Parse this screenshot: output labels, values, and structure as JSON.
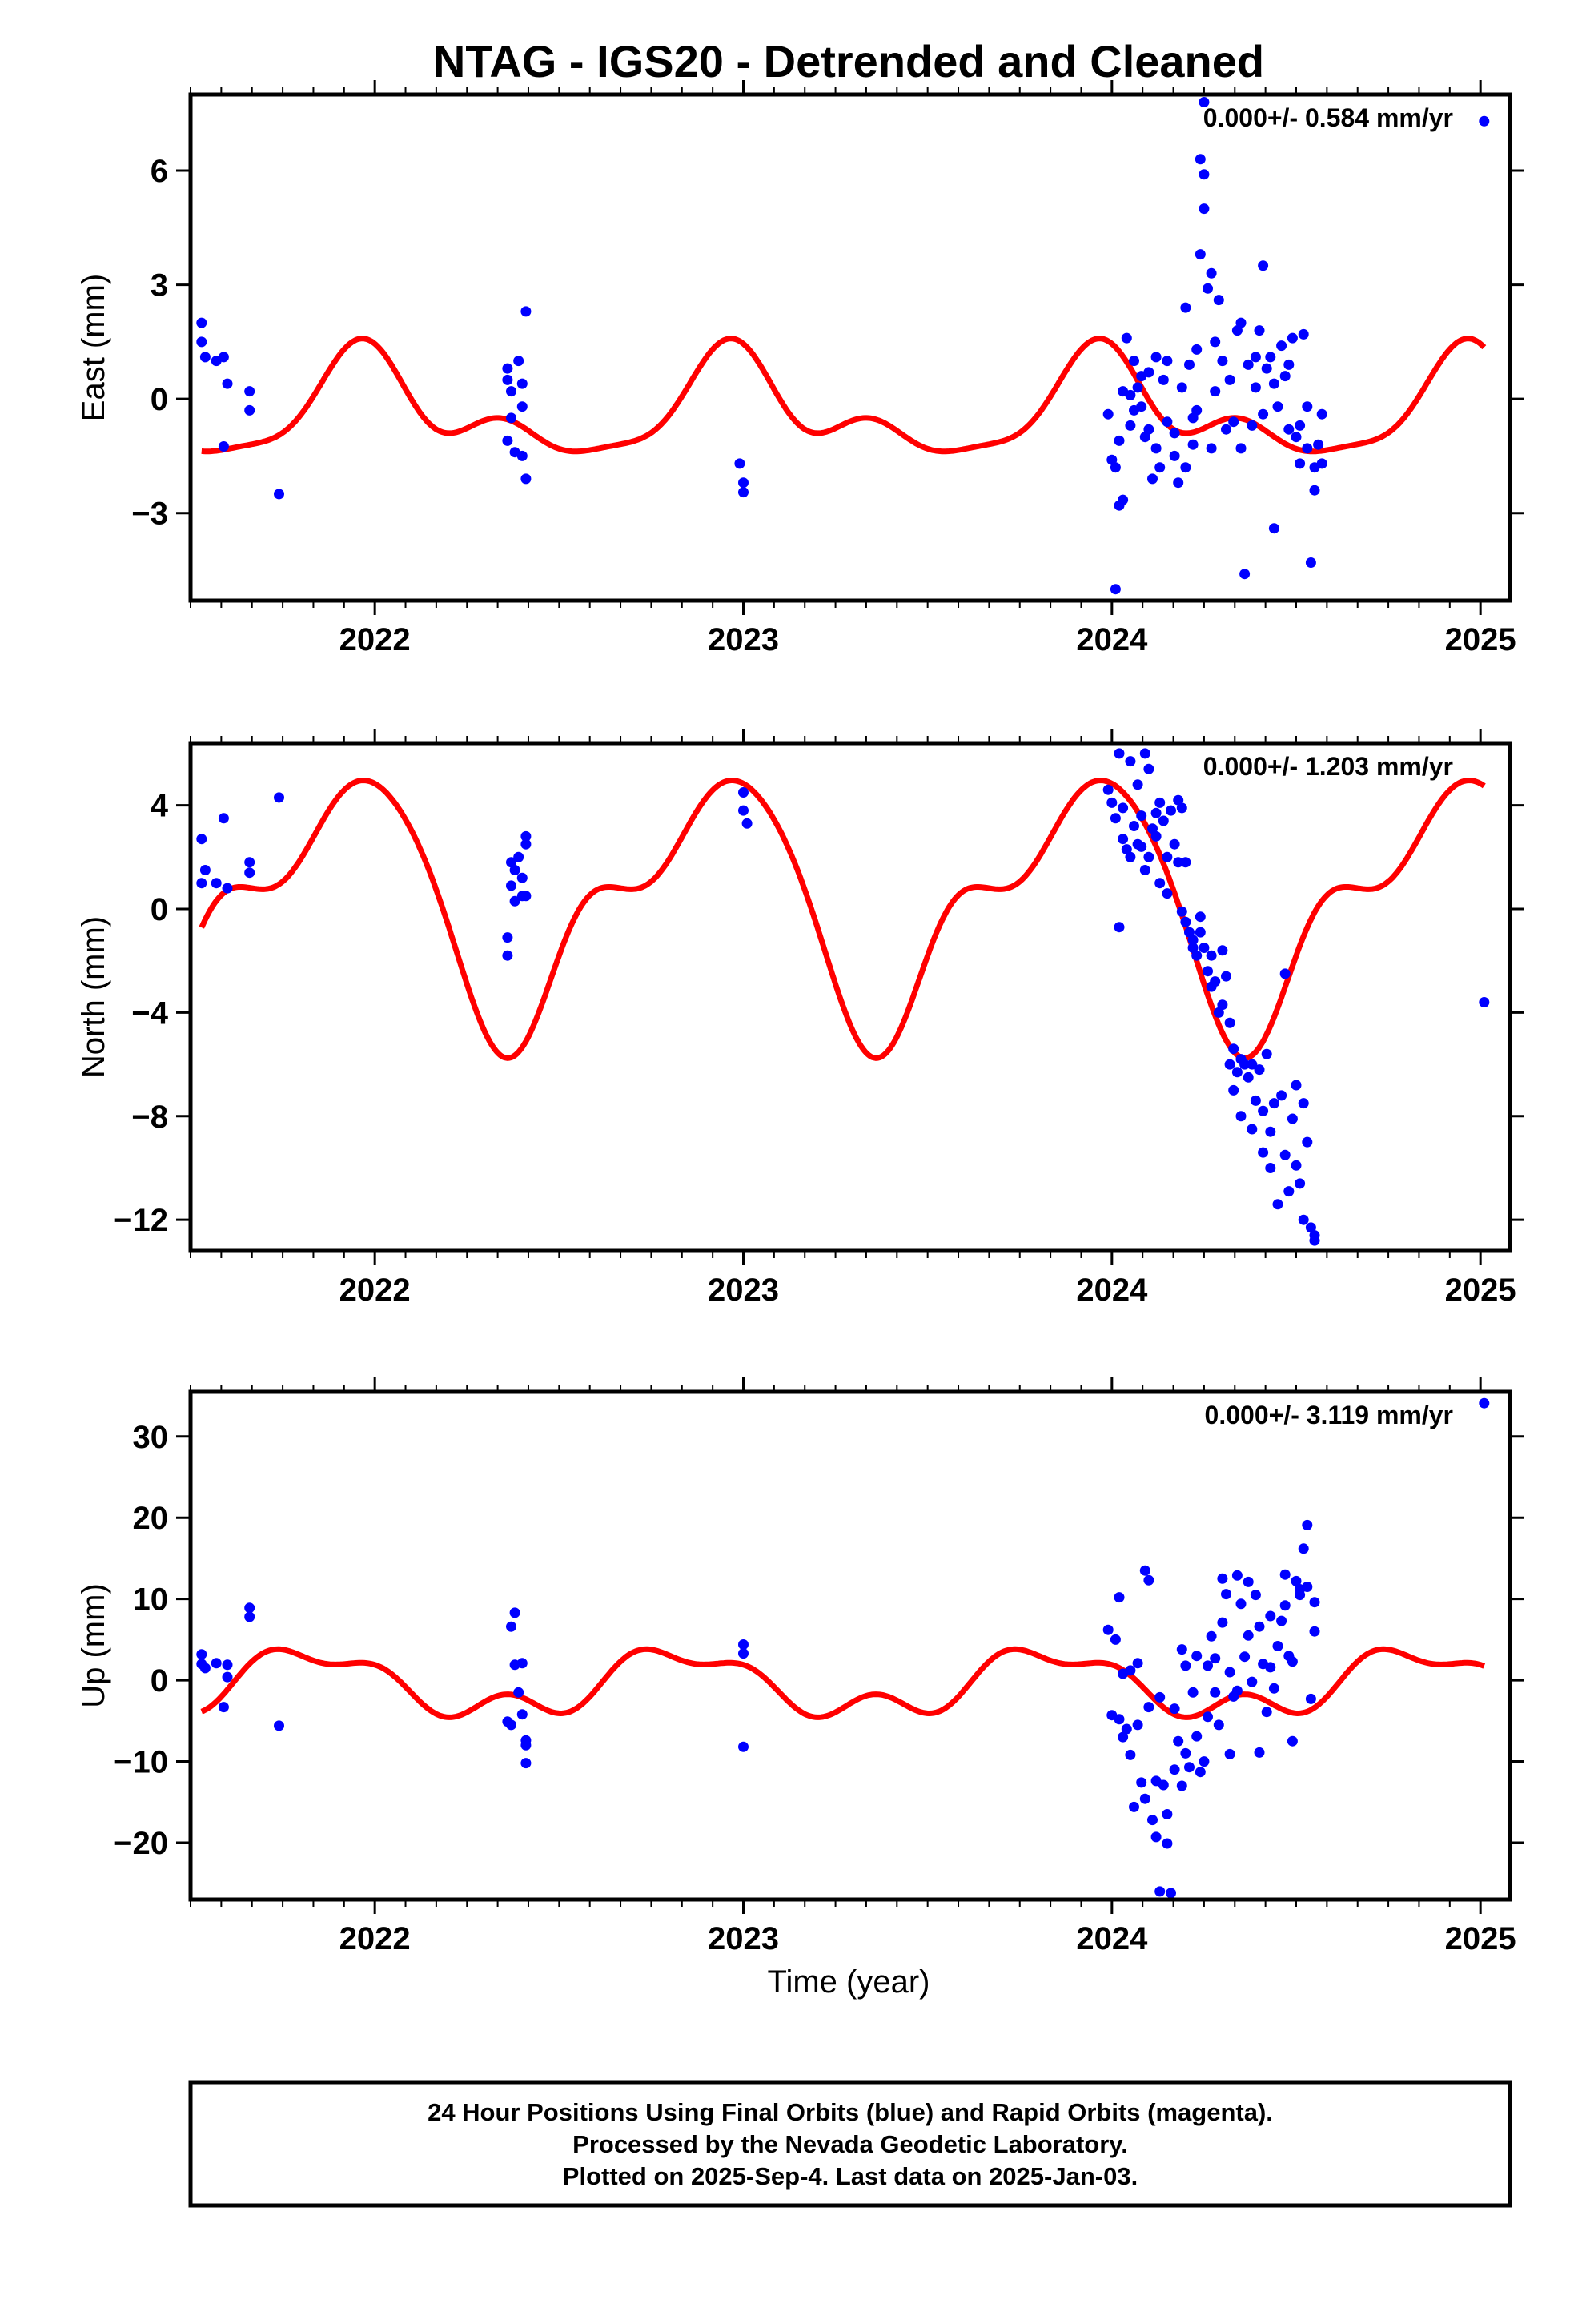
{
  "title": "NTAG - IGS20 - Detrended and Cleaned",
  "xlabel": "Time (year)",
  "footer": {
    "line1": "24 Hour Positions Using Final Orbits (blue) and Rapid Orbits (magenta).",
    "line2": "Processed by the Nevada Geodetic Laboratory.",
    "line3": "Plotted on 2025-Sep-4. Last data on 2025-Jan-03."
  },
  "colors": {
    "points": "#0000ff",
    "model": "#ff0000",
    "frame": "#000000"
  },
  "chart_data": [
    {
      "type": "scatter",
      "ylabel": "East (mm)",
      "rate_text": "0.000+/- 0.584 mm/yr",
      "xlim": [
        2021.5,
        2025.08
      ],
      "ylim": [
        -5.3,
        8.0
      ],
      "xticks": [
        2022,
        2023,
        2024,
        2025
      ],
      "yticks": [
        -3,
        0,
        3,
        6
      ],
      "ytick_labels": [
        "−3",
        "0",
        "3",
        "6"
      ],
      "points": [
        [
          2021.53,
          2.0
        ],
        [
          2021.53,
          1.5
        ],
        [
          2021.54,
          1.1
        ],
        [
          2021.57,
          1.0
        ],
        [
          2021.59,
          1.1
        ],
        [
          2021.59,
          -1.25
        ],
        [
          2021.6,
          0.4
        ],
        [
          2021.66,
          0.2
        ],
        [
          2021.66,
          -0.3
        ],
        [
          2021.74,
          -2.5
        ],
        [
          2022.36,
          0.8
        ],
        [
          2022.36,
          0.5
        ],
        [
          2022.36,
          -1.1
        ],
        [
          2022.37,
          0.2
        ],
        [
          2022.37,
          -0.5
        ],
        [
          2022.38,
          -1.4
        ],
        [
          2022.39,
          1.0
        ],
        [
          2022.4,
          0.4
        ],
        [
          2022.4,
          -0.2
        ],
        [
          2022.4,
          -1.5
        ],
        [
          2022.41,
          2.3
        ],
        [
          2022.41,
          -2.1
        ],
        [
          2022.99,
          -1.7
        ],
        [
          2023.0,
          -2.2
        ],
        [
          2023.0,
          -2.45
        ],
        [
          2023.99,
          -0.4
        ],
        [
          2024.0,
          -1.6
        ],
        [
          2024.01,
          -1.8
        ],
        [
          2024.01,
          -5.0
        ],
        [
          2024.02,
          -1.1
        ],
        [
          2024.02,
          -2.8
        ],
        [
          2024.03,
          -2.65
        ],
        [
          2024.03,
          0.2
        ],
        [
          2024.04,
          1.6
        ],
        [
          2024.05,
          -0.7
        ],
        [
          2024.05,
          0.1
        ],
        [
          2024.06,
          1.0
        ],
        [
          2024.06,
          -0.3
        ],
        [
          2024.07,
          0.3
        ],
        [
          2024.08,
          0.6
        ],
        [
          2024.08,
          -0.2
        ],
        [
          2024.09,
          -1.0
        ],
        [
          2024.1,
          0.7
        ],
        [
          2024.1,
          -0.8
        ],
        [
          2024.11,
          -2.1
        ],
        [
          2024.12,
          1.1
        ],
        [
          2024.12,
          -1.3
        ],
        [
          2024.13,
          -1.8
        ],
        [
          2024.14,
          0.5
        ],
        [
          2024.15,
          -0.6
        ],
        [
          2024.15,
          1.0
        ],
        [
          2024.17,
          -1.5
        ],
        [
          2024.17,
          -0.9
        ],
        [
          2024.18,
          -2.2
        ],
        [
          2024.19,
          0.3
        ],
        [
          2024.2,
          -1.8
        ],
        [
          2024.2,
          2.4
        ],
        [
          2024.21,
          0.9
        ],
        [
          2024.22,
          -1.2
        ],
        [
          2024.22,
          -0.5
        ],
        [
          2024.23,
          1.3
        ],
        [
          2024.23,
          -0.3
        ],
        [
          2024.24,
          3.8
        ],
        [
          2024.24,
          6.3
        ],
        [
          2024.25,
          5.9
        ],
        [
          2024.25,
          7.8
        ],
        [
          2024.25,
          5.0
        ],
        [
          2024.26,
          2.9
        ],
        [
          2024.27,
          3.3
        ],
        [
          2024.27,
          -1.3
        ],
        [
          2024.28,
          1.5
        ],
        [
          2024.28,
          0.2
        ],
        [
          2024.29,
          2.6
        ],
        [
          2024.3,
          1.0
        ],
        [
          2024.31,
          -0.8
        ],
        [
          2024.32,
          0.5
        ],
        [
          2024.33,
          -0.6
        ],
        [
          2024.34,
          1.8
        ],
        [
          2024.35,
          2.0
        ],
        [
          2024.35,
          -1.3
        ],
        [
          2024.36,
          -4.6
        ],
        [
          2024.37,
          0.9
        ],
        [
          2024.38,
          -0.7
        ],
        [
          2024.39,
          1.1
        ],
        [
          2024.39,
          0.3
        ],
        [
          2024.4,
          1.8
        ],
        [
          2024.41,
          -0.4
        ],
        [
          2024.41,
          3.5
        ],
        [
          2024.42,
          0.8
        ],
        [
          2024.43,
          1.1
        ],
        [
          2024.44,
          0.4
        ],
        [
          2024.44,
          -3.4
        ],
        [
          2024.45,
          -0.2
        ],
        [
          2024.46,
          1.4
        ],
        [
          2024.47,
          0.6
        ],
        [
          2024.48,
          -0.8
        ],
        [
          2024.48,
          0.9
        ],
        [
          2024.49,
          1.6
        ],
        [
          2024.5,
          -1.0
        ],
        [
          2024.51,
          -1.7
        ],
        [
          2024.51,
          -0.7
        ],
        [
          2024.52,
          1.7
        ],
        [
          2024.53,
          -1.3
        ],
        [
          2024.53,
          -0.2
        ],
        [
          2024.54,
          -4.3
        ],
        [
          2024.55,
          -2.4
        ],
        [
          2024.55,
          -1.8
        ],
        [
          2024.56,
          -1.2
        ],
        [
          2024.57,
          -0.4
        ],
        [
          2024.57,
          -1.7
        ],
        [
          2025.01,
          7.3
        ]
      ]
    },
    {
      "type": "scatter",
      "ylabel": "North (mm)",
      "rate_text": "0.000+/- 1.203 mm/yr",
      "xlim": [
        2021.5,
        2025.08
      ],
      "ylim": [
        -13.2,
        6.4
      ],
      "xticks": [
        2022,
        2023,
        2024,
        2025
      ],
      "yticks": [
        -12,
        -8,
        -4,
        0,
        4
      ],
      "ytick_labels": [
        "−12",
        "−8",
        "−4",
        "0",
        "4"
      ],
      "points": [
        [
          2021.53,
          2.7
        ],
        [
          2021.53,
          1.0
        ],
        [
          2021.54,
          1.5
        ],
        [
          2021.57,
          1.0
        ],
        [
          2021.59,
          3.5
        ],
        [
          2021.6,
          0.8
        ],
        [
          2021.66,
          1.8
        ],
        [
          2021.66,
          1.4
        ],
        [
          2021.74,
          4.3
        ],
        [
          2022.36,
          -1.1
        ],
        [
          2022.36,
          -1.8
        ],
        [
          2022.37,
          1.8
        ],
        [
          2022.37,
          0.9
        ],
        [
          2022.38,
          0.3
        ],
        [
          2022.38,
          1.5
        ],
        [
          2022.39,
          2.0
        ],
        [
          2022.4,
          0.5
        ],
        [
          2022.4,
          1.2
        ],
        [
          2022.41,
          2.8
        ],
        [
          2022.41,
          0.5
        ],
        [
          2022.41,
          2.5
        ],
        [
          2023.0,
          4.5
        ],
        [
          2023.0,
          3.8
        ],
        [
          2023.01,
          3.3
        ],
        [
          2023.99,
          4.6
        ],
        [
          2024.0,
          4.1
        ],
        [
          2024.01,
          3.5
        ],
        [
          2024.02,
          6.0
        ],
        [
          2024.02,
          -0.7
        ],
        [
          2024.03,
          3.9
        ],
        [
          2024.03,
          2.7
        ],
        [
          2024.04,
          2.3
        ],
        [
          2024.05,
          2.0
        ],
        [
          2024.05,
          5.7
        ],
        [
          2024.06,
          3.2
        ],
        [
          2024.07,
          2.5
        ],
        [
          2024.07,
          4.8
        ],
        [
          2024.08,
          2.4
        ],
        [
          2024.08,
          3.6
        ],
        [
          2024.09,
          1.5
        ],
        [
          2024.09,
          6.0
        ],
        [
          2024.1,
          2.0
        ],
        [
          2024.1,
          5.4
        ],
        [
          2024.11,
          3.1
        ],
        [
          2024.12,
          2.8
        ],
        [
          2024.12,
          3.7
        ],
        [
          2024.13,
          1.0
        ],
        [
          2024.13,
          4.1
        ],
        [
          2024.14,
          3.4
        ],
        [
          2024.15,
          2.0
        ],
        [
          2024.15,
          0.6
        ],
        [
          2024.16,
          3.8
        ],
        [
          2024.17,
          2.5
        ],
        [
          2024.18,
          1.8
        ],
        [
          2024.18,
          4.2
        ],
        [
          2024.19,
          -0.1
        ],
        [
          2024.19,
          3.9
        ],
        [
          2024.2,
          -0.5
        ],
        [
          2024.2,
          1.8
        ],
        [
          2024.21,
          -0.9
        ],
        [
          2024.22,
          -1.5
        ],
        [
          2024.22,
          -1.2
        ],
        [
          2024.23,
          -1.8
        ],
        [
          2024.24,
          -0.3
        ],
        [
          2024.24,
          -0.9
        ],
        [
          2024.25,
          -1.5
        ],
        [
          2024.26,
          -2.4
        ],
        [
          2024.27,
          -3.0
        ],
        [
          2024.27,
          -1.8
        ],
        [
          2024.28,
          -2.8
        ],
        [
          2024.29,
          -4.0
        ],
        [
          2024.3,
          -1.6
        ],
        [
          2024.3,
          -3.7
        ],
        [
          2024.31,
          -2.6
        ],
        [
          2024.32,
          -4.4
        ],
        [
          2024.32,
          -6.0
        ],
        [
          2024.33,
          -5.4
        ],
        [
          2024.33,
          -7.0
        ],
        [
          2024.34,
          -6.3
        ],
        [
          2024.35,
          -5.8
        ],
        [
          2024.35,
          -8.0
        ],
        [
          2024.36,
          -6.0
        ],
        [
          2024.37,
          -6.5
        ],
        [
          2024.38,
          -8.5
        ],
        [
          2024.38,
          -6.0
        ],
        [
          2024.39,
          -7.4
        ],
        [
          2024.4,
          -6.2
        ],
        [
          2024.41,
          -7.8
        ],
        [
          2024.41,
          -9.4
        ],
        [
          2024.42,
          -5.6
        ],
        [
          2024.43,
          -8.6
        ],
        [
          2024.43,
          -10.0
        ],
        [
          2024.44,
          -7.5
        ],
        [
          2024.45,
          -11.4
        ],
        [
          2024.46,
          -7.2
        ],
        [
          2024.47,
          -9.5
        ],
        [
          2024.47,
          -2.5
        ],
        [
          2024.48,
          -10.9
        ],
        [
          2024.49,
          -8.1
        ],
        [
          2024.5,
          -9.9
        ],
        [
          2024.5,
          -6.8
        ],
        [
          2024.51,
          -10.6
        ],
        [
          2024.52,
          -12.0
        ],
        [
          2024.52,
          -7.5
        ],
        [
          2024.53,
          -9.0
        ],
        [
          2024.54,
          -12.3
        ],
        [
          2024.55,
          -12.8
        ],
        [
          2024.55,
          -12.6
        ],
        [
          2025.01,
          -3.6
        ]
      ]
    },
    {
      "type": "scatter",
      "ylabel": "Up (mm)",
      "rate_text": "0.000+/- 3.119 mm/yr",
      "xlim": [
        2021.5,
        2025.08
      ],
      "ylim": [
        -27.0,
        35.5
      ],
      "xticks": [
        2022,
        2023,
        2024,
        2025
      ],
      "yticks": [
        -20,
        -10,
        0,
        10,
        20,
        30
      ],
      "ytick_labels": [
        "−20",
        "−10",
        "0",
        "10",
        "20",
        "30"
      ],
      "points": [
        [
          2021.53,
          3.2
        ],
        [
          2021.53,
          2.0
        ],
        [
          2021.54,
          1.5
        ],
        [
          2021.57,
          2.1
        ],
        [
          2021.59,
          -3.3
        ],
        [
          2021.6,
          0.4
        ],
        [
          2021.6,
          1.9
        ],
        [
          2021.66,
          7.8
        ],
        [
          2021.66,
          8.9
        ],
        [
          2021.74,
          -5.6
        ],
        [
          2022.36,
          -5.1
        ],
        [
          2022.37,
          -5.5
        ],
        [
          2022.37,
          6.6
        ],
        [
          2022.38,
          8.3
        ],
        [
          2022.38,
          1.9
        ],
        [
          2022.39,
          -1.5
        ],
        [
          2022.4,
          -4.2
        ],
        [
          2022.4,
          2.1
        ],
        [
          2022.41,
          -7.4
        ],
        [
          2022.41,
          -10.2
        ],
        [
          2022.41,
          -8.0
        ],
        [
          2023.0,
          4.4
        ],
        [
          2023.0,
          3.3
        ],
        [
          2023.0,
          -8.2
        ],
        [
          2023.99,
          6.2
        ],
        [
          2024.0,
          -4.3
        ],
        [
          2024.01,
          5.0
        ],
        [
          2024.02,
          10.2
        ],
        [
          2024.02,
          -4.8
        ],
        [
          2024.03,
          -7.0
        ],
        [
          2024.03,
          0.8
        ],
        [
          2024.04,
          -6.0
        ],
        [
          2024.05,
          -9.2
        ],
        [
          2024.05,
          1.2
        ],
        [
          2024.06,
          -15.6
        ],
        [
          2024.07,
          -5.5
        ],
        [
          2024.07,
          2.1
        ],
        [
          2024.08,
          -12.6
        ],
        [
          2024.09,
          -14.6
        ],
        [
          2024.09,
          13.5
        ],
        [
          2024.1,
          -3.3
        ],
        [
          2024.1,
          12.3
        ],
        [
          2024.11,
          -17.2
        ],
        [
          2024.12,
          -19.3
        ],
        [
          2024.12,
          -12.4
        ],
        [
          2024.13,
          -2.1
        ],
        [
          2024.13,
          -26.0
        ],
        [
          2024.14,
          -12.9
        ],
        [
          2024.15,
          -20.1
        ],
        [
          2024.15,
          -16.5
        ],
        [
          2024.16,
          -26.2
        ],
        [
          2024.17,
          -11.0
        ],
        [
          2024.17,
          -3.5
        ],
        [
          2024.18,
          -7.5
        ],
        [
          2024.19,
          -13.0
        ],
        [
          2024.19,
          3.8
        ],
        [
          2024.2,
          1.8
        ],
        [
          2024.2,
          -9.0
        ],
        [
          2024.21,
          -10.7
        ],
        [
          2024.22,
          -1.5
        ],
        [
          2024.23,
          -6.9
        ],
        [
          2024.23,
          3.0
        ],
        [
          2024.24,
          -11.3
        ],
        [
          2024.25,
          -10.0
        ],
        [
          2024.26,
          1.8
        ],
        [
          2024.26,
          -4.5
        ],
        [
          2024.27,
          5.4
        ],
        [
          2024.28,
          -1.5
        ],
        [
          2024.28,
          2.7
        ],
        [
          2024.29,
          -5.5
        ],
        [
          2024.3,
          12.5
        ],
        [
          2024.3,
          7.1
        ],
        [
          2024.31,
          10.6
        ],
        [
          2024.32,
          1.0
        ],
        [
          2024.32,
          -9.1
        ],
        [
          2024.33,
          -2.0
        ],
        [
          2024.34,
          -1.3
        ],
        [
          2024.34,
          12.9
        ],
        [
          2024.35,
          9.4
        ],
        [
          2024.36,
          2.9
        ],
        [
          2024.37,
          5.5
        ],
        [
          2024.37,
          12.1
        ],
        [
          2024.38,
          -0.2
        ],
        [
          2024.39,
          10.5
        ],
        [
          2024.4,
          6.6
        ],
        [
          2024.4,
          -8.9
        ],
        [
          2024.41,
          2.0
        ],
        [
          2024.42,
          -3.9
        ],
        [
          2024.43,
          1.6
        ],
        [
          2024.43,
          7.9
        ],
        [
          2024.44,
          -1.0
        ],
        [
          2024.45,
          4.2
        ],
        [
          2024.46,
          7.3
        ],
        [
          2024.47,
          9.2
        ],
        [
          2024.47,
          13.0
        ],
        [
          2024.48,
          3.0
        ],
        [
          2024.49,
          -7.5
        ],
        [
          2024.49,
          2.3
        ],
        [
          2024.5,
          12.2
        ],
        [
          2024.51,
          10.5
        ],
        [
          2024.51,
          11.2
        ],
        [
          2024.52,
          16.2
        ],
        [
          2024.53,
          19.1
        ],
        [
          2024.53,
          11.5
        ],
        [
          2024.54,
          -2.3
        ],
        [
          2024.55,
          9.6
        ],
        [
          2024.55,
          6.0
        ],
        [
          2025.01,
          34.1
        ]
      ]
    }
  ]
}
